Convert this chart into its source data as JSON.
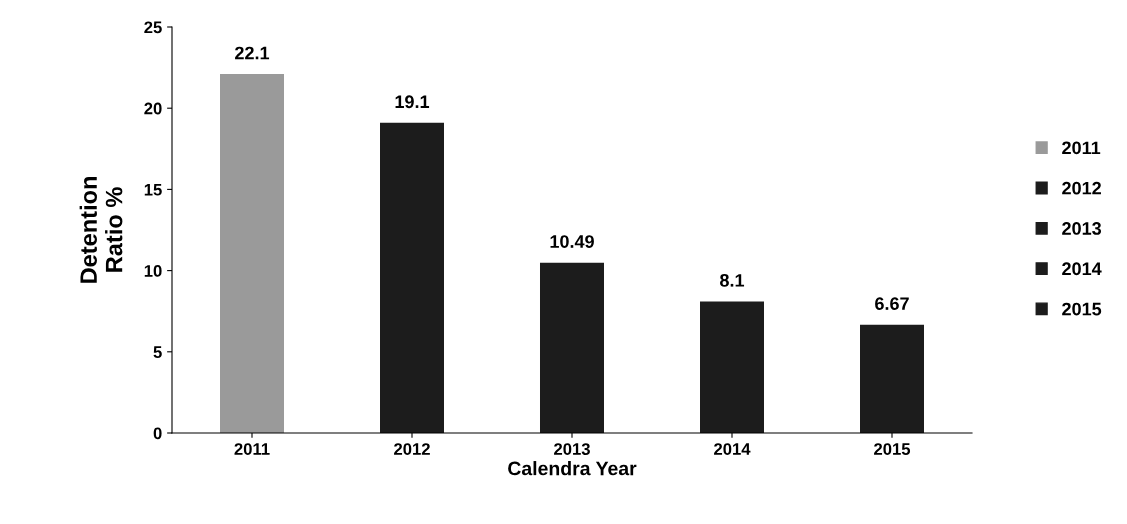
{
  "chart_data": {
    "type": "bar",
    "xlabel": "Calendra Year",
    "ylabel": "Detention\nRatio %",
    "categories": [
      "2011",
      "2012",
      "2013",
      "2014",
      "2015"
    ],
    "series": [
      {
        "name": "2011",
        "color": "#9a9a9a",
        "values": [
          22.1,
          null,
          null,
          null,
          null
        ]
      },
      {
        "name": "2012",
        "color": "#1c1c1c",
        "values": [
          null,
          19.1,
          null,
          null,
          null
        ]
      },
      {
        "name": "2013",
        "color": "#1c1c1c",
        "values": [
          null,
          null,
          10.49,
          null,
          null
        ]
      },
      {
        "name": "2014",
        "color": "#1c1c1c",
        "values": [
          null,
          null,
          null,
          8.1,
          null
        ]
      },
      {
        "name": "2015",
        "color": "#1c1c1c",
        "values": [
          null,
          null,
          null,
          null,
          6.67
        ]
      }
    ],
    "ylim": [
      0,
      25
    ],
    "yticks": [
      0,
      5,
      10,
      15,
      20,
      25
    ],
    "grid": false,
    "legend": "right",
    "data_labels": true
  }
}
